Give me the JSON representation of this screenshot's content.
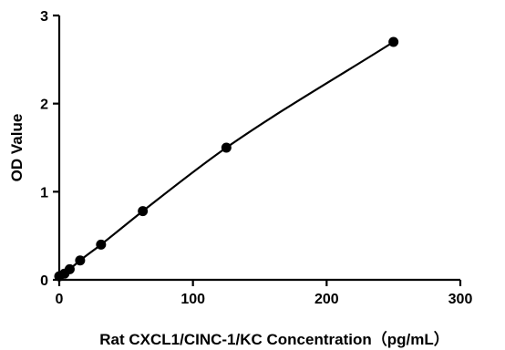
{
  "chart_data": {
    "type": "scatter",
    "xlabel": "Rat CXCL1/CINC-1/KC Concentration（pg/mL）",
    "ylabel": "OD Value",
    "xlim": [
      0,
      300
    ],
    "ylim": [
      0,
      3
    ],
    "xticks": [
      0,
      100,
      200,
      300
    ],
    "yticks": [
      0,
      1,
      2,
      3
    ],
    "grid": false,
    "fit_line": true,
    "marker_color": "#000000",
    "line_color": "#000000",
    "x": [
      0,
      3.9,
      7.8,
      15.6,
      31.25,
      62.5,
      125,
      250
    ],
    "y": [
      0.04,
      0.07,
      0.12,
      0.22,
      0.4,
      0.78,
      1.5,
      2.7
    ]
  }
}
